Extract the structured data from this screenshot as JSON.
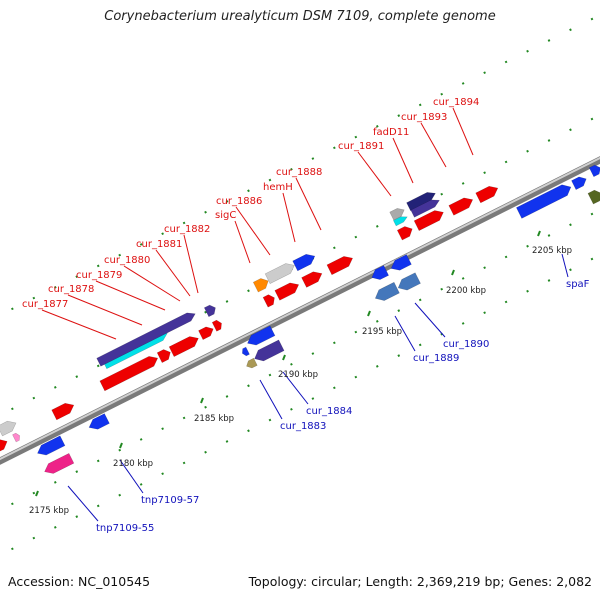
{
  "title": "Corynebacterium urealyticum DSM 7109, complete genome",
  "footer": {
    "accession": "Accession: NC_010545",
    "summary": "Topology: circular; Length: 2,369,219 bp; Genes: 2,082"
  },
  "colors": {
    "forward_label": "#dd1111",
    "reverse_label": "#1111bb",
    "backbone": "#808080",
    "tick": "#228822"
  },
  "scale_ticks": [
    "2175 kbp",
    "2180 kbp",
    "2185 kbp",
    "2190 kbp",
    "2195 kbp",
    "2200 kbp",
    "2205 kbp"
  ],
  "forward_labels": [
    "cur_1877",
    "cur_1878",
    "cur_1879",
    "cur_1880",
    "cur_1881",
    "cur_1882",
    "sigC",
    "cur_1886",
    "hemH",
    "cur_1888",
    "cur_1891",
    "fadD11",
    "cur_1893",
    "cur_1894"
  ],
  "reverse_labels": [
    "tnp7109-55",
    "tnp7109-57",
    "cur_1883",
    "cur_1884",
    "cur_1889",
    "cur_1890",
    "spaF"
  ]
}
